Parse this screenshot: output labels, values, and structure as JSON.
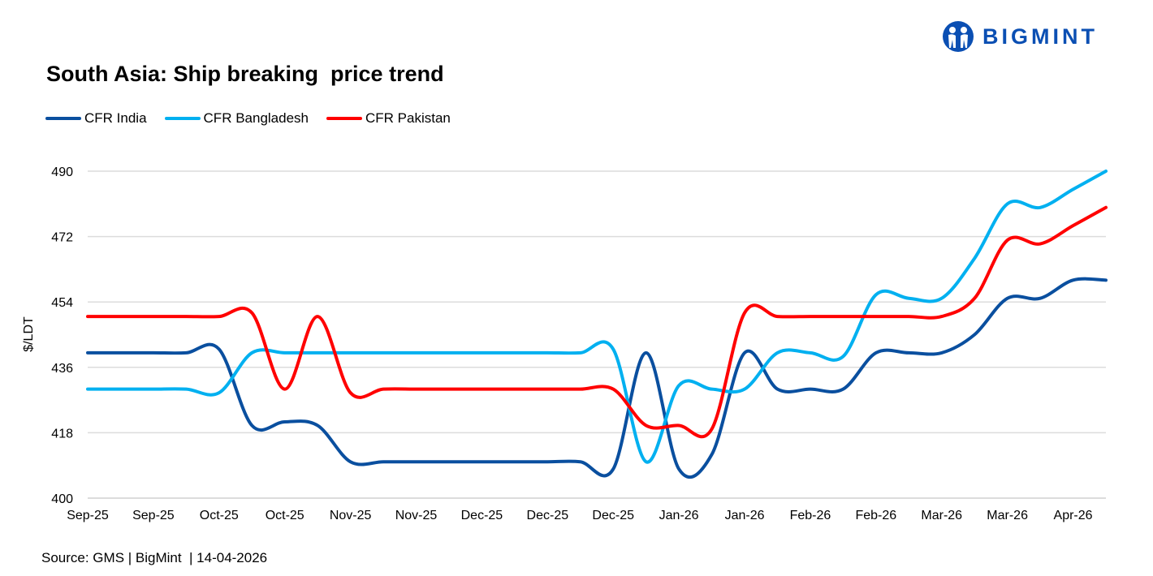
{
  "logo": {
    "text": "BIGMINT",
    "color": "#0b4fb3"
  },
  "source": "Source: GMS | BigMint  | 14-04-2026",
  "chart_data": {
    "type": "line",
    "title": "South Asia: Ship breaking  price trend",
    "ylabel": "$/LDT",
    "xlabel": "",
    "ylim": [
      400,
      490
    ],
    "yticks": [
      400,
      418,
      436,
      454,
      472,
      490
    ],
    "grid": true,
    "legend": "top-left",
    "smooth": true,
    "x_tick_labels": [
      "Sep-25",
      "Sep-25",
      "Oct-25",
      "Oct-25",
      "Nov-25",
      "Nov-25",
      "Dec-25",
      "Dec-25",
      "Dec-25",
      "Jan-26",
      "Jan-26",
      "Feb-26",
      "Feb-26",
      "Mar-26",
      "Mar-26",
      "Apr-26"
    ],
    "series": [
      {
        "name": "CFR India",
        "color": "#0a4f9f",
        "values": [
          440,
          440,
          440,
          440,
          441,
          420,
          421,
          420,
          410,
          410,
          410,
          410,
          410,
          410,
          410,
          410,
          408,
          440,
          408,
          412,
          440,
          430,
          430,
          430,
          440,
          440,
          440,
          445,
          455,
          455,
          460,
          460
        ]
      },
      {
        "name": "CFR Bangladesh",
        "color": "#00b0f0",
        "values": [
          430,
          430,
          430,
          430,
          429,
          440,
          440,
          440,
          440,
          440,
          440,
          440,
          440,
          440,
          440,
          440,
          441,
          410,
          431,
          430,
          430,
          440,
          440,
          439,
          456,
          455,
          455,
          466,
          481,
          480,
          485,
          490
        ]
      },
      {
        "name": "CFR Pakistan",
        "color": "#ff0000",
        "values": [
          450,
          450,
          450,
          450,
          450,
          451,
          430,
          450,
          429,
          430,
          430,
          430,
          430,
          430,
          430,
          430,
          430,
          420,
          420,
          419,
          451,
          450,
          450,
          450,
          450,
          450,
          450,
          455,
          471,
          470,
          475,
          480
        ]
      }
    ]
  }
}
